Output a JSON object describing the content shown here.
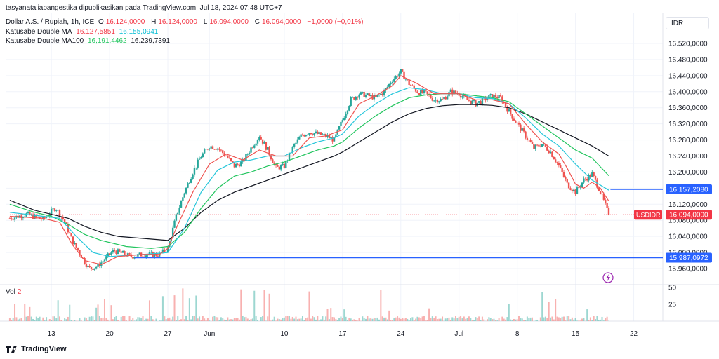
{
  "header": {
    "published": "tasyanataliapangestika dipublikasikan pada TradingView.com, Jul 18, 2024 07:48 UTC+7",
    "symbol": "Dollar A.S. / Rupiah, 1h, ICE",
    "ohlc": {
      "o_label": "O",
      "o": "16.124,0000",
      "h_label": "H",
      "h": "16.124,0000",
      "l_label": "L",
      "l": "16.094,0000",
      "c_label": "C",
      "c": "16.094,0000",
      "change": "−1,0000 (−0,01%)"
    },
    "ind1": {
      "name": "Katusabe Double MA",
      "v1": "16.127,5851",
      "v2": "16.155,0941"
    },
    "ind2": {
      "name": "Katusabe Double MA100",
      "v1": "16,191,4462",
      "v2": "16.239,7391"
    }
  },
  "currency_button": "IDR",
  "volume": {
    "label": "Vol",
    "value": "2",
    "scale": [
      "50",
      "25"
    ]
  },
  "brand": "TradingView",
  "colors": {
    "up": "#26a69a",
    "down": "#ef5350",
    "ma_fast": "#ef5350",
    "ma_mid": "#26c6da",
    "ma_green": "#22c55e",
    "ma_slow": "#131722",
    "hline": "#2962ff",
    "price_label": "#f23645"
  },
  "chart_data": {
    "type": "candlestick",
    "title": "Dollar A.S. / Rupiah, 1h, ICE",
    "ylim": [
      15940,
      16560
    ],
    "yticks": [
      16520,
      16480,
      16440,
      16400,
      16360,
      16320,
      16280,
      16240,
      16200,
      16160,
      16120,
      16080,
      16040,
      16000,
      15960
    ],
    "ytick_labels": [
      "16.520,0000",
      "16.480,0000",
      "16.440,0000",
      "16.400,0000",
      "16.360,0000",
      "16.320,0000",
      "16.280,0000",
      "16.240,0000",
      "16.200,0000",
      "16.160,0000",
      "16.120,0000",
      "16.080,0000",
      "16.040,0000",
      "16.000,0000",
      "15.960,0000"
    ],
    "xtick_labels": [
      "13",
      "20",
      "27",
      "Jun",
      "10",
      "17",
      "24",
      "Jul",
      "8",
      "15",
      "22"
    ],
    "xtick_days": [
      13,
      20,
      27,
      32,
      41,
      48,
      55,
      62,
      69,
      76,
      83
    ],
    "x_range_days": [
      7.5,
      86.5
    ],
    "price_profile": [
      [
        8,
        16085
      ],
      [
        10,
        16095
      ],
      [
        12,
        16082
      ],
      [
        13.5,
        16112
      ],
      [
        14.5,
        16080
      ],
      [
        15.5,
        16030
      ],
      [
        16.5,
        15995
      ],
      [
        17.5,
        15960
      ],
      [
        18.5,
        15965
      ],
      [
        19.5,
        15985
      ],
      [
        20.5,
        16005
      ],
      [
        21.5,
        15998
      ],
      [
        22.5,
        15990
      ],
      [
        24,
        15995
      ],
      [
        26,
        15995
      ],
      [
        27,
        16010
      ],
      [
        28,
        16090
      ],
      [
        29,
        16150
      ],
      [
        30,
        16200
      ],
      [
        31,
        16240
      ],
      [
        32,
        16265
      ],
      [
        33,
        16260
      ],
      [
        34,
        16240
      ],
      [
        35,
        16215
      ],
      [
        36,
        16225
      ],
      [
        37,
        16260
      ],
      [
        38,
        16290
      ],
      [
        39,
        16255
      ],
      [
        40,
        16210
      ],
      [
        41,
        16215
      ],
      [
        42,
        16260
      ],
      [
        43,
        16290
      ],
      [
        44,
        16300
      ],
      [
        45,
        16295
      ],
      [
        46,
        16290
      ],
      [
        47,
        16280
      ],
      [
        48,
        16330
      ],
      [
        49,
        16380
      ],
      [
        50,
        16395
      ],
      [
        51,
        16390
      ],
      [
        52,
        16385
      ],
      [
        53,
        16400
      ],
      [
        54,
        16430
      ],
      [
        55,
        16450
      ],
      [
        56,
        16420
      ],
      [
        57,
        16400
      ],
      [
        58,
        16395
      ],
      [
        59,
        16380
      ],
      [
        60,
        16380
      ],
      [
        61,
        16400
      ],
      [
        62,
        16395
      ],
      [
        63,
        16380
      ],
      [
        64,
        16370
      ],
      [
        65,
        16380
      ],
      [
        66,
        16390
      ],
      [
        67,
        16385
      ],
      [
        68,
        16350
      ],
      [
        69,
        16320
      ],
      [
        70,
        16290
      ],
      [
        71,
        16260
      ],
      [
        72,
        16270
      ],
      [
        73,
        16250
      ],
      [
        74,
        16215
      ],
      [
        75,
        16170
      ],
      [
        76,
        16150
      ],
      [
        77,
        16180
      ],
      [
        78,
        16195
      ],
      [
        79,
        16150
      ],
      [
        80,
        16094
      ]
    ],
    "ma_fast": [
      [
        8,
        16090
      ],
      [
        12,
        16085
      ],
      [
        14,
        16075
      ],
      [
        15.5,
        16020
      ],
      [
        17,
        15980
      ],
      [
        19,
        15970
      ],
      [
        21,
        15990
      ],
      [
        24,
        15995
      ],
      [
        26,
        15995
      ],
      [
        27,
        16010
      ],
      [
        28,
        16060
      ],
      [
        30,
        16150
      ],
      [
        32,
        16220
      ],
      [
        34,
        16245
      ],
      [
        36,
        16230
      ],
      [
        38,
        16255
      ],
      [
        40,
        16240
      ],
      [
        42,
        16240
      ],
      [
        44,
        16285
      ],
      [
        46,
        16290
      ],
      [
        48,
        16305
      ],
      [
        50,
        16370
      ],
      [
        52,
        16390
      ],
      [
        54,
        16415
      ],
      [
        55,
        16440
      ],
      [
        57,
        16420
      ],
      [
        59,
        16395
      ],
      [
        62,
        16395
      ],
      [
        64,
        16380
      ],
      [
        66,
        16380
      ],
      [
        68,
        16370
      ],
      [
        70,
        16320
      ],
      [
        72,
        16275
      ],
      [
        74,
        16245
      ],
      [
        75,
        16210
      ],
      [
        76,
        16170
      ],
      [
        77,
        16160
      ],
      [
        78,
        16175
      ],
      [
        79,
        16160
      ],
      [
        80,
        16128
      ]
    ],
    "ma_mid": [
      [
        8,
        16100
      ],
      [
        12,
        16090
      ],
      [
        14,
        16085
      ],
      [
        16,
        16040
      ],
      [
        18,
        16000
      ],
      [
        20,
        15990
      ],
      [
        24,
        15995
      ],
      [
        27,
        16000
      ],
      [
        29,
        16060
      ],
      [
        31,
        16150
      ],
      [
        33,
        16205
      ],
      [
        35,
        16225
      ],
      [
        37,
        16230
      ],
      [
        39,
        16240
      ],
      [
        41,
        16240
      ],
      [
        43,
        16260
      ],
      [
        45,
        16275
      ],
      [
        47,
        16285
      ],
      [
        48,
        16295
      ],
      [
        50,
        16340
      ],
      [
        52,
        16370
      ],
      [
        54,
        16395
      ],
      [
        56,
        16410
      ],
      [
        58,
        16405
      ],
      [
        60,
        16395
      ],
      [
        62,
        16395
      ],
      [
        64,
        16385
      ],
      [
        66,
        16383
      ],
      [
        68,
        16370
      ],
      [
        70,
        16335
      ],
      [
        72,
        16295
      ],
      [
        74,
        16265
      ],
      [
        76,
        16220
      ],
      [
        78,
        16180
      ],
      [
        80,
        16155
      ]
    ],
    "ma_green": [
      [
        8,
        16120
      ],
      [
        11,
        16100
      ],
      [
        13,
        16090
      ],
      [
        15,
        16070
      ],
      [
        17,
        16045
      ],
      [
        19,
        16030
      ],
      [
        22,
        16015
      ],
      [
        25,
        16010
      ],
      [
        27,
        16015
      ],
      [
        29,
        16050
      ],
      [
        31,
        16110
      ],
      [
        33,
        16160
      ],
      [
        35,
        16190
      ],
      [
        37,
        16200
      ],
      [
        39,
        16215
      ],
      [
        41,
        16225
      ],
      [
        43,
        16240
      ],
      [
        45,
        16255
      ],
      [
        47,
        16265
      ],
      [
        48,
        16275
      ],
      [
        50,
        16310
      ],
      [
        52,
        16340
      ],
      [
        54,
        16365
      ],
      [
        56,
        16385
      ],
      [
        58,
        16392
      ],
      [
        60,
        16395
      ],
      [
        62,
        16395
      ],
      [
        64,
        16390
      ],
      [
        66,
        16385
      ],
      [
        68,
        16375
      ],
      [
        70,
        16345
      ],
      [
        72,
        16315
      ],
      [
        74,
        16285
      ],
      [
        76,
        16255
      ],
      [
        78,
        16235
      ],
      [
        80,
        16191
      ]
    ],
    "ma_slow": [
      [
        8,
        16130
      ],
      [
        11,
        16105
      ],
      [
        13,
        16095
      ],
      [
        15,
        16085
      ],
      [
        17,
        16065
      ],
      [
        19,
        16050
      ],
      [
        21,
        16040
      ],
      [
        24,
        16035
      ],
      [
        27,
        16030
      ],
      [
        29,
        16060
      ],
      [
        31,
        16100
      ],
      [
        33,
        16130
      ],
      [
        35,
        16150
      ],
      [
        37,
        16165
      ],
      [
        39,
        16180
      ],
      [
        41,
        16195
      ],
      [
        43,
        16210
      ],
      [
        45,
        16225
      ],
      [
        47,
        16240
      ],
      [
        48,
        16250
      ],
      [
        50,
        16275
      ],
      [
        52,
        16300
      ],
      [
        54,
        16325
      ],
      [
        56,
        16345
      ],
      [
        58,
        16358
      ],
      [
        60,
        16365
      ],
      [
        62,
        16368
      ],
      [
        64,
        16368
      ],
      [
        66,
        16366
      ],
      [
        68,
        16360
      ],
      [
        70,
        16345
      ],
      [
        72,
        16325
      ],
      [
        74,
        16305
      ],
      [
        76,
        16285
      ],
      [
        78,
        16265
      ],
      [
        80,
        16240
      ]
    ],
    "horizontal_lines": [
      {
        "price": 16157.208,
        "label": "16.157,2080",
        "from_day": 80.2
      },
      {
        "price": 15987.0972,
        "label": "15.987,0972",
        "from_day": 23
      }
    ],
    "current_price": {
      "price": 16094,
      "label": "16.094,0000",
      "symbol_label": "USDIDR"
    },
    "volume_scale_max": 50
  }
}
